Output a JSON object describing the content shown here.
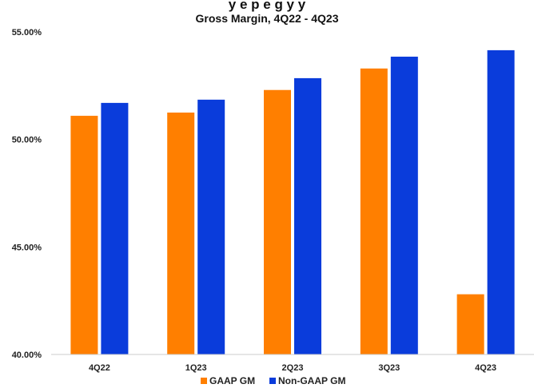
{
  "chart_data": {
    "type": "bar",
    "cut_title": "y   e       p                    e        g     y   y",
    "title": "Gross Margin, 4Q22 - 4Q23",
    "xlabel": "",
    "ylabel": "",
    "categories": [
      "4Q22",
      "1Q23",
      "2Q23",
      "3Q23",
      "4Q23"
    ],
    "series": [
      {
        "name": "GAAP GM",
        "color": "#FF7F00",
        "values": [
          51.1,
          51.25,
          52.3,
          53.3,
          42.8
        ]
      },
      {
        "name": "Non-GAAP GM",
        "color": "#0A3CDB",
        "values": [
          51.7,
          51.85,
          52.85,
          53.85,
          54.15
        ]
      }
    ],
    "ylim": [
      40,
      55
    ],
    "yticks": [
      "40.00%",
      "45.00%",
      "50.00%",
      "55.00%"
    ],
    "ytick_values": [
      40,
      45,
      50,
      55
    ],
    "grid": false,
    "legend_position": "bottom-center"
  }
}
